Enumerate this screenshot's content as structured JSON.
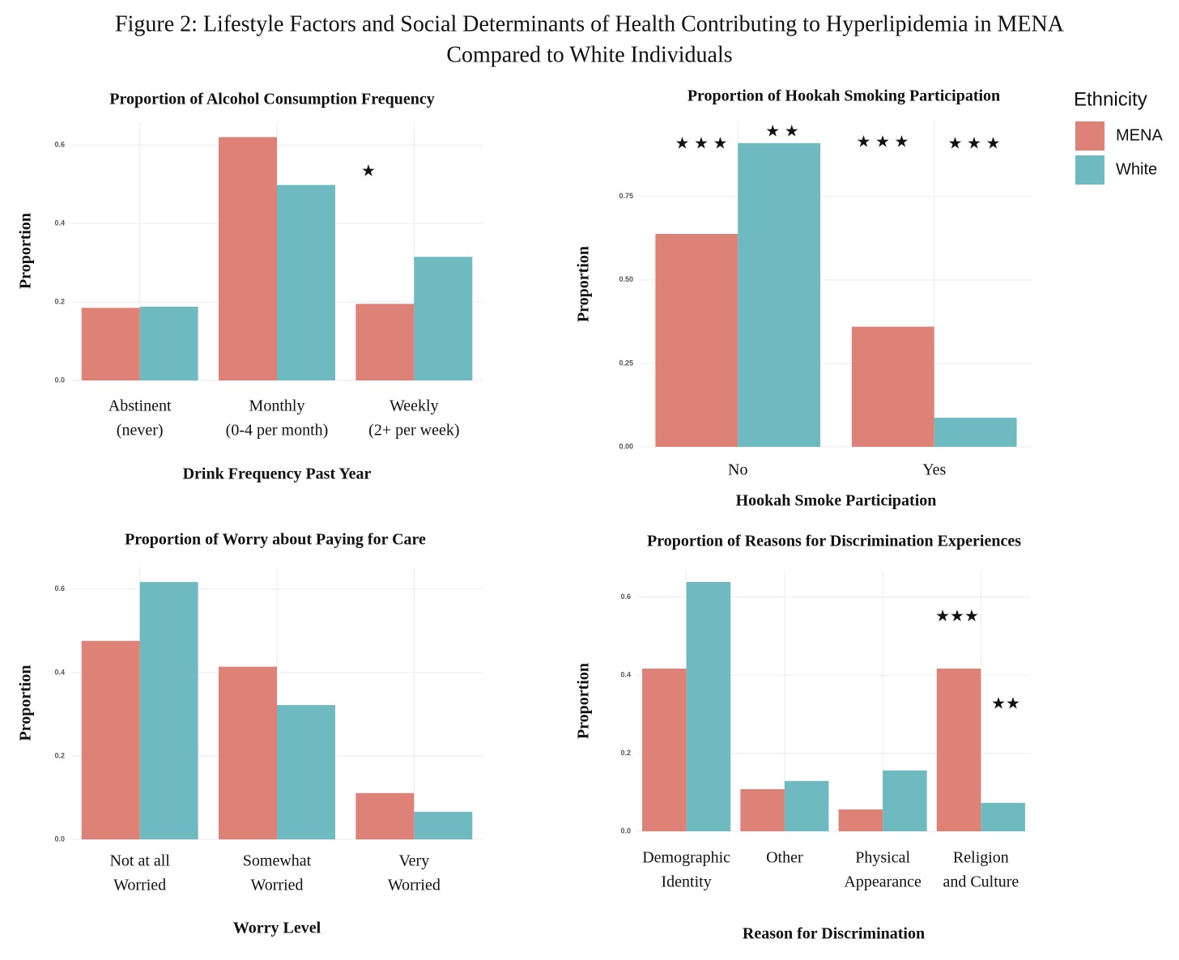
{
  "figure_title": [
    "Figure 2: Lifestyle Factors and Social Determinants of Health Contributing to Hyperlipidemia in MENA",
    "Compared to White Individuals"
  ],
  "legend": {
    "title": "Ethnicity"
  },
  "chart_data": [
    {
      "type": "bar",
      "title": "Proportion of Alcohol Consumption Frequency",
      "x_label": "Drink Frequency Past Year",
      "y_label": "Proportion",
      "categories": [
        [
          "Abstinent",
          "(never)"
        ],
        [
          "Monthly",
          "(0-4 per month)"
        ],
        [
          "Weekly",
          "(2+ per week)"
        ]
      ],
      "series": [
        {
          "name": "MENA",
          "color": "#de8176",
          "values": [
            0.185,
            0.62,
            0.195
          ]
        },
        {
          "name": "White",
          "color": "#6fbac1",
          "values": [
            0.188,
            0.498,
            0.315
          ]
        }
      ],
      "ylim": [
        0,
        0.66
      ],
      "yticks": [
        {
          "value": 0,
          "label": "0.0"
        },
        0.2,
        0.4,
        0.6
      ],
      "grid": true,
      "annotations": [
        "★"
      ]
    },
    {
      "type": "bar",
      "title": "Proportion of Hookah Smoking Participation",
      "x_label": "Hookah Smoke Participation",
      "y_label": "Proportion",
      "categories": [
        [
          "No"
        ],
        [
          "Yes"
        ]
      ],
      "series": [
        {
          "name": "MENA",
          "color": "#de8176",
          "values": [
            0.638,
            0.36
          ]
        },
        {
          "name": "White",
          "color": "#6fbac1",
          "values": [
            0.91,
            0.087
          ]
        }
      ],
      "ylim": [
        0,
        0.975
      ],
      "yticks": [
        {
          "value": 0,
          "label": "0.00"
        },
        0.25,
        {
          "value": 0.5,
          "label": "0.50"
        },
        0.75
      ],
      "grid": true,
      "annotations": [
        "★ ★ ★",
        "★ ★",
        "★ ★ ★",
        "★ ★ ★"
      ]
    },
    {
      "type": "bar",
      "title": "Proportion of Worry about Paying for Care",
      "x_label": "Worry Level",
      "y_label": "Proportion",
      "categories": [
        [
          "Not at all",
          "Worried"
        ],
        [
          "Somewhat",
          "Worried"
        ],
        [
          "Very",
          "Worried"
        ]
      ],
      "series": [
        {
          "name": "MENA",
          "color": "#de8176",
          "values": [
            0.476,
            0.414,
            0.111
          ]
        },
        {
          "name": "White",
          "color": "#6fbac1",
          "values": [
            0.617,
            0.322,
            0.066
          ]
        }
      ],
      "ylim": [
        0,
        0.654
      ],
      "yticks": [
        {
          "value": 0,
          "label": "0.0"
        },
        0.2,
        0.4,
        0.6
      ],
      "grid": true,
      "annotations": []
    },
    {
      "type": "bar",
      "title": "Proportion of Reasons for Discrimination Experiences",
      "x_label": "Reason for Discrimination",
      "y_label": "Proportion",
      "categories": [
        [
          "Demographic",
          "Identity"
        ],
        [
          "Other"
        ],
        [
          "Physical",
          "Appearance"
        ],
        [
          "Religion",
          "and Culture"
        ]
      ],
      "series": [
        {
          "name": "MENA",
          "color": "#de8176",
          "values": [
            0.417,
            0.108,
            0.056,
            0.417
          ]
        },
        {
          "name": "White",
          "color": "#6fbac1",
          "values": [
            0.639,
            0.129,
            0.156,
            0.073
          ]
        }
      ],
      "ylim": [
        0,
        0.668
      ],
      "yticks": [
        {
          "value": 0,
          "label": "0.0"
        },
        0.2,
        0.4,
        0.6
      ],
      "grid": true,
      "annotations": [
        "★★★",
        "★★"
      ]
    }
  ]
}
